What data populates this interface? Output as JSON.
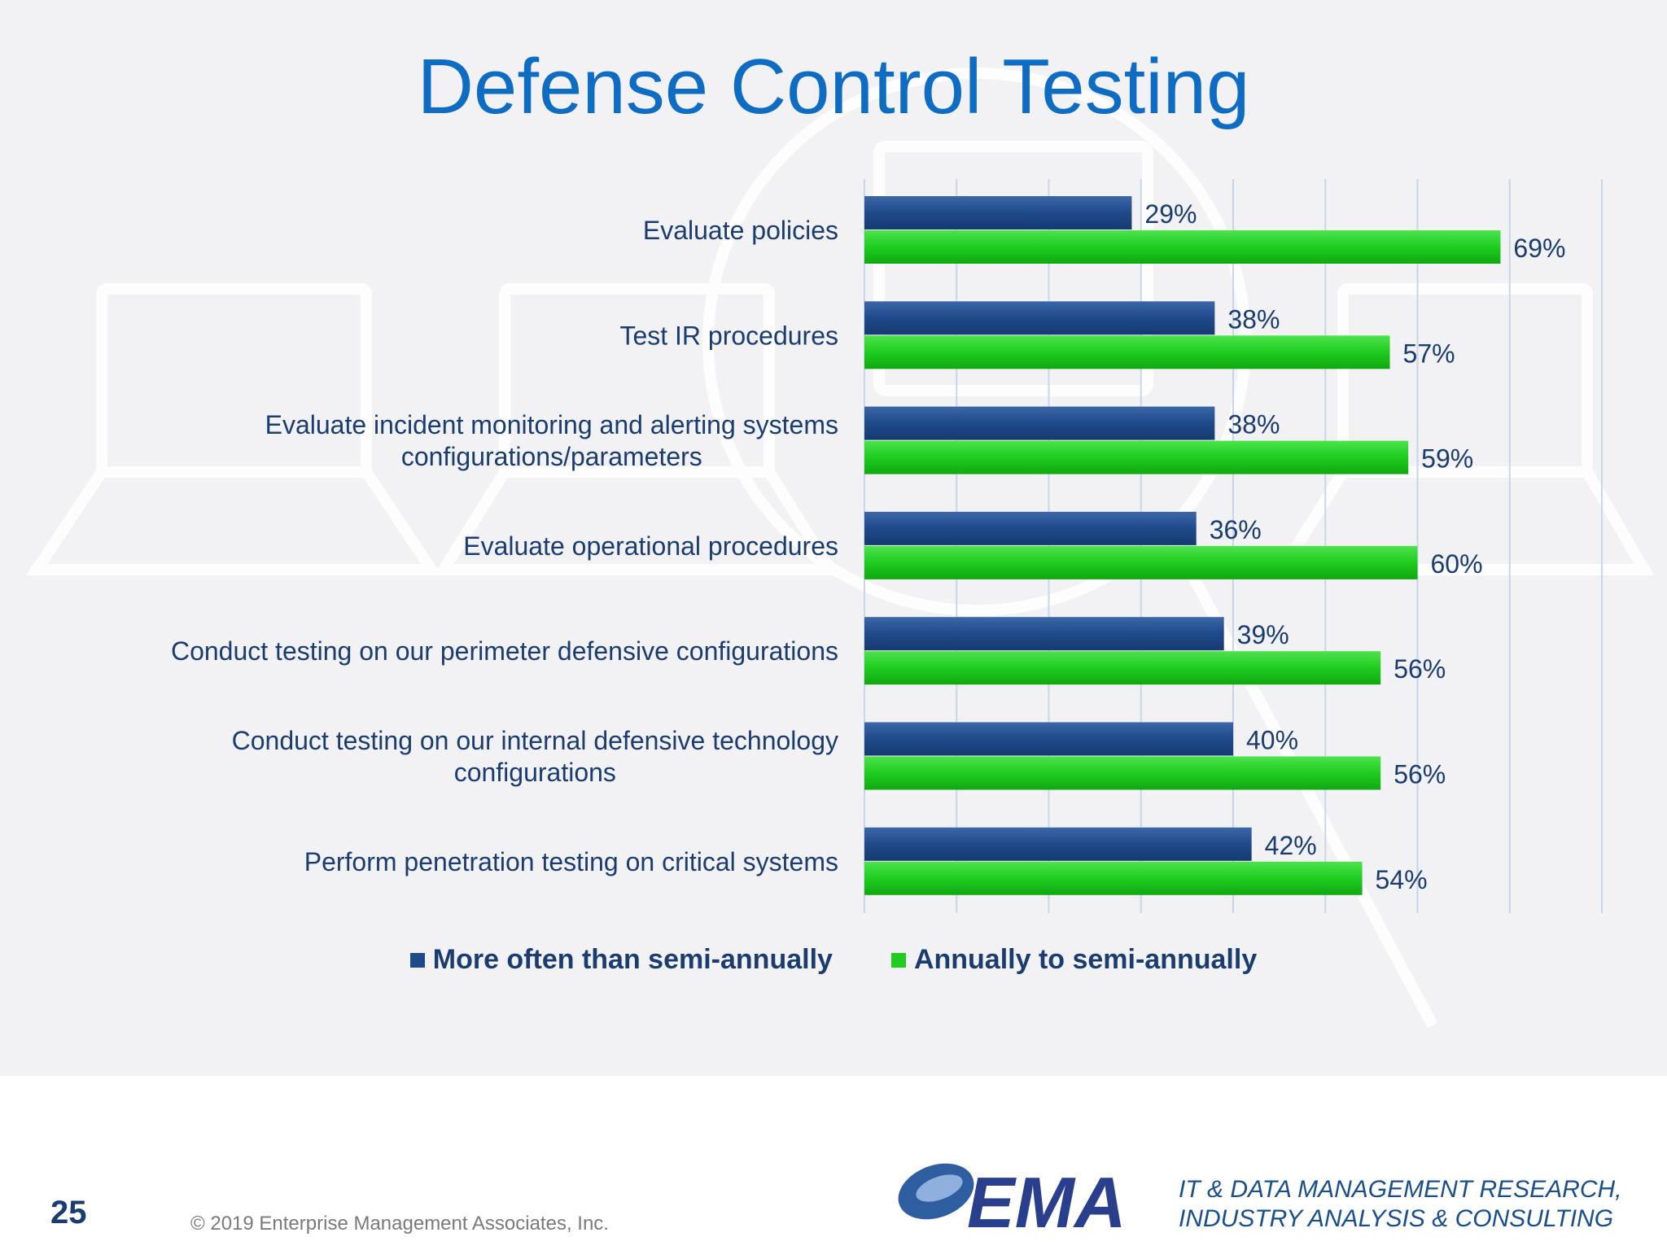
{
  "slide": {
    "title": "Defense Control Testing"
  },
  "chart_data": {
    "type": "bar",
    "orientation": "horizontal",
    "title": "Defense Control Testing",
    "categories": [
      "Evaluate policies",
      "Test IR procedures",
      "Evaluate incident monitoring and alerting systems configurations/parameters",
      "Evaluate operational procedures",
      "Conduct testing on our perimeter defensive configurations",
      "Conduct testing on our internal defensive technology configurations",
      "Perform penetration testing on critical systems"
    ],
    "category_lines": [
      [
        "Evaluate policies"
      ],
      [
        "Test IR procedures"
      ],
      [
        "Evaluate incident monitoring and alerting systems",
        "configurations/parameters"
      ],
      [
        "Evaluate operational procedures"
      ],
      [
        "Conduct testing on our perimeter defensive configurations"
      ],
      [
        "Conduct testing on our internal defensive technology",
        "configurations"
      ],
      [
        "Perform penetration testing on critical systems"
      ]
    ],
    "series": [
      {
        "name": "More often than semi-annually",
        "color": "#1f4a8a",
        "values": [
          29,
          38,
          38,
          36,
          39,
          40,
          42
        ],
        "labels": [
          "29%",
          "38%",
          "38%",
          "36%",
          "39%",
          "40%",
          "42%"
        ]
      },
      {
        "name": "Annually to semi-annually",
        "color": "#1fcc1f",
        "values": [
          69,
          57,
          59,
          60,
          56,
          56,
          54
        ],
        "labels": [
          "69%",
          "57%",
          "59%",
          "60%",
          "56%",
          "56%",
          "54%"
        ]
      }
    ],
    "xlim": [
      0,
      80
    ],
    "grid": true,
    "legend_position": "bottom"
  },
  "footer": {
    "page_number": "25",
    "copyright": "© 2019 Enterprise Management Associates, Inc.",
    "logo_text": "EMA",
    "tagline_line1": "IT & DATA MANAGEMENT RESEARCH,",
    "tagline_line2": "INDUSTRY ANALYSIS & CONSULTING"
  }
}
